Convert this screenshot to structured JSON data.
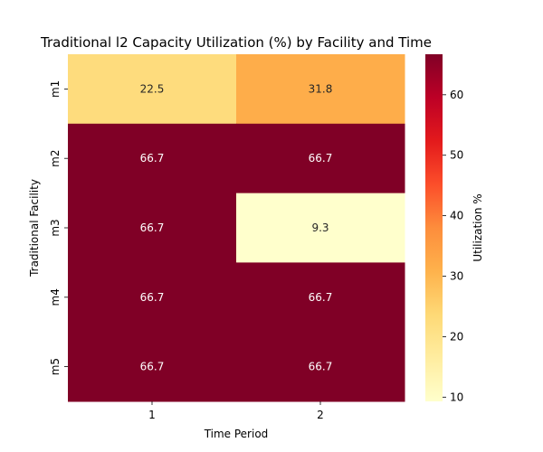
{
  "chart_data": {
    "type": "heatmap",
    "title": "Traditional l2 Capacity Utilization (%) by Facility and Time",
    "xlabel": "Time Period",
    "ylabel": "Traditional Facility",
    "x_categories": [
      "1",
      "2"
    ],
    "y_categories": [
      "m1",
      "m2",
      "m3",
      "m4",
      "m5"
    ],
    "values": [
      [
        22.5,
        31.8
      ],
      [
        66.7,
        66.7
      ],
      [
        66.7,
        9.3
      ],
      [
        66.7,
        66.7
      ],
      [
        66.7,
        66.7
      ]
    ],
    "value_labels": [
      [
        "22.5",
        "31.8"
      ],
      [
        "66.7",
        "66.7"
      ],
      [
        "66.7",
        "9.3"
      ],
      [
        "66.7",
        "66.7"
      ],
      [
        "66.7",
        "66.7"
      ]
    ],
    "colorbar": {
      "label": "Utilization %",
      "colormap": "YlOrRd",
      "range": [
        9.3,
        66.7
      ],
      "ticks": [
        "10",
        "20",
        "30",
        "40",
        "50",
        "60"
      ],
      "tick_values": [
        10,
        20,
        30,
        40,
        50,
        60
      ]
    }
  }
}
